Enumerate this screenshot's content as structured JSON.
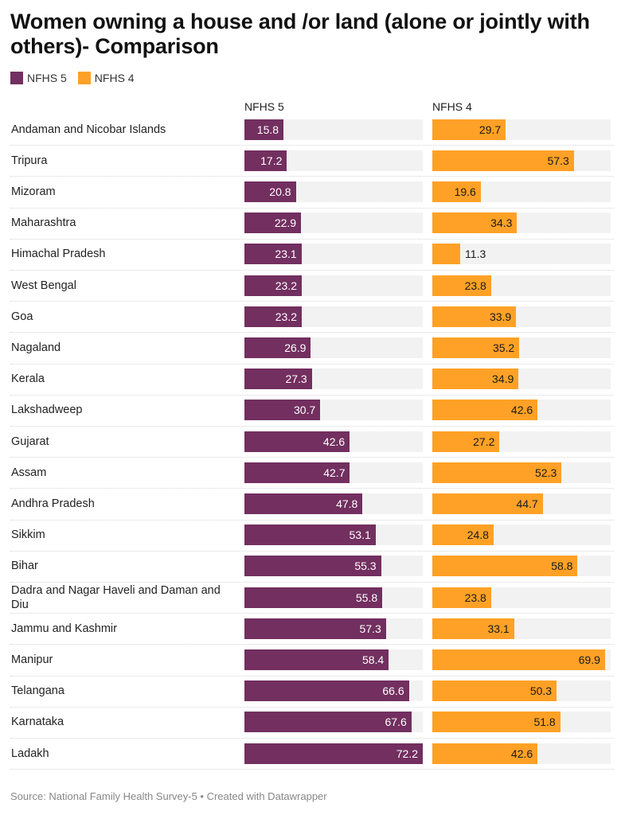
{
  "title": "Women owning a house and /or land (alone or jointly with others)- Comparison",
  "legend": [
    {
      "label": "NFHS 5",
      "color": "#722F5F"
    },
    {
      "label": "NFHS 4",
      "color": "#FFA126"
    }
  ],
  "source": "Source: National Family Health Survey-5 • Created with Datawrapper",
  "chart_data": {
    "type": "bar",
    "orientation": "horizontal",
    "grid": false,
    "legend_position": "top-left",
    "xlim": [
      0,
      72.2
    ],
    "categories": [
      "Andaman and Nicobar Islands",
      "Tripura",
      "Mizoram",
      "Maharashtra",
      "Himachal Pradesh",
      "West Bengal",
      "Goa",
      "Nagaland",
      "Kerala",
      "Lakshadweep",
      "Gujarat",
      "Assam",
      "Andhra Pradesh",
      "Sikkim",
      "Bihar",
      "Dadra and Nagar Haveli and Daman and Diu",
      "Jammu and Kashmir",
      "Manipur",
      "Telangana",
      "Karnataka",
      "Ladakh"
    ],
    "series": [
      {
        "name": "NFHS 5",
        "color": "#722F5F",
        "values": [
          15.8,
          17.2,
          20.8,
          22.9,
          23.1,
          23.2,
          23.2,
          26.9,
          27.3,
          30.7,
          42.6,
          42.7,
          47.8,
          53.1,
          55.3,
          55.8,
          57.3,
          58.4,
          66.6,
          67.6,
          72.2
        ]
      },
      {
        "name": "NFHS 4",
        "color": "#FFA126",
        "values": [
          29.7,
          57.3,
          19.6,
          34.3,
          11.3,
          23.8,
          33.9,
          35.2,
          34.9,
          42.6,
          27.2,
          52.3,
          44.7,
          24.8,
          58.8,
          23.8,
          33.1,
          69.9,
          50.3,
          51.8,
          42.6
        ]
      }
    ]
  }
}
